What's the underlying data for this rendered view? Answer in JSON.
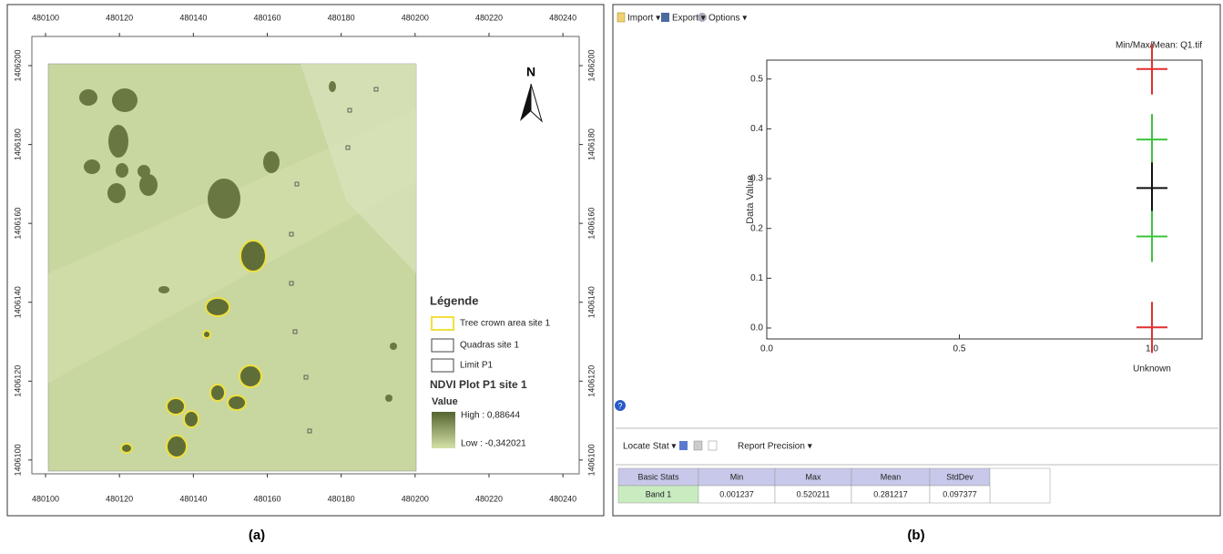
{
  "map": {
    "xlim": [
      480096.3,
      480244.4
    ],
    "ylim": [
      1406096.5,
      1406207.4
    ],
    "xticks": [
      480100,
      480120,
      480140,
      480160,
      480180,
      480200,
      480220,
      480240
    ],
    "yticks": [
      1406100,
      1406120,
      1406140,
      1406160,
      1406180,
      1406200
    ],
    "north": "N",
    "legend": {
      "title": "Légende",
      "items": [
        "Tree crown area site 1",
        "Quadras site 1",
        "Limit P1"
      ],
      "raster_title": "NDVI Plot P1 site 1",
      "value_label": "Value",
      "high": "High : 0,88644",
      "low": "Low : -0,342021"
    }
  },
  "toolbar": [
    "Import ▾",
    "Export ▾",
    "Options ▾"
  ],
  "chart_data": {
    "type": "scatter",
    "title": "Min/Max/Mean: Q1.tif",
    "y_label": "Data Value",
    "categories": [
      "Unknown"
    ],
    "x": [
      1
    ],
    "series": [
      {
        "color": "#e03030",
        "values": [
          0.520211
        ]
      },
      {
        "color": "#3cc43c",
        "values": [
          0.378594
        ]
      },
      {
        "color": "#111111",
        "values": [
          0.281217
        ]
      },
      {
        "color": "#3cc43c",
        "values": [
          0.18384
        ]
      },
      {
        "color": "#e03030",
        "values": [
          0.001237
        ]
      }
    ],
    "xlim": [
      0,
      1.13
    ],
    "ylim": [
      -0.022,
      0.538
    ],
    "xticks": [
      {
        "value": 0,
        "label": "0.0"
      },
      0.5,
      {
        "value": 1,
        "label": "1.0"
      }
    ],
    "yticks": [
      {
        "value": 0,
        "label": "0.0"
      },
      0.1,
      0.2,
      0.3,
      0.4,
      0.5
    ]
  },
  "bottom_toolbar": [
    "Locate Stat ▾",
    "Report Precision ▾"
  ],
  "table": {
    "header": [
      "Basic Stats",
      "Min",
      "Max",
      "Mean",
      "StdDev"
    ],
    "rows": [
      [
        "Band 1",
        "0.001237",
        "0.520211",
        "0.281217",
        "0.097377"
      ]
    ]
  },
  "captions": [
    "(a)",
    "(b)"
  ]
}
